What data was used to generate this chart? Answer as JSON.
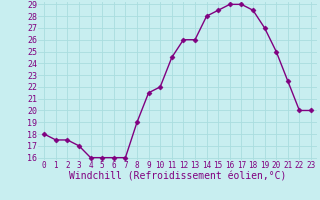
{
  "x": [
    0,
    1,
    2,
    3,
    4,
    5,
    6,
    7,
    8,
    9,
    10,
    11,
    12,
    13,
    14,
    15,
    16,
    17,
    18,
    19,
    20,
    21,
    22,
    23
  ],
  "y": [
    18,
    17.5,
    17.5,
    17,
    16,
    16,
    16,
    16,
    19,
    21.5,
    22,
    24.5,
    26,
    26,
    28,
    28.5,
    29,
    29,
    28.5,
    27,
    25,
    22.5,
    20,
    20
  ],
  "xlabel": "Windchill (Refroidissement éolien,°C)",
  "ylim": [
    16,
    29
  ],
  "xlim": [
    -0.5,
    23.5
  ],
  "yticks": [
    16,
    17,
    18,
    19,
    20,
    21,
    22,
    23,
    24,
    25,
    26,
    27,
    28,
    29
  ],
  "xticks": [
    0,
    1,
    2,
    3,
    4,
    5,
    6,
    7,
    8,
    9,
    10,
    11,
    12,
    13,
    14,
    15,
    16,
    17,
    18,
    19,
    20,
    21,
    22,
    23
  ],
  "line_color": "#800080",
  "marker": "D",
  "marker_size": 2.5,
  "bg_color": "#c8eef0",
  "grid_color": "#aadddf",
  "xlabel_color": "#800080",
  "tick_color": "#800080",
  "xlabel_fontsize": 7,
  "ytick_fontsize": 6,
  "xtick_fontsize": 5.5,
  "linewidth": 1.0
}
